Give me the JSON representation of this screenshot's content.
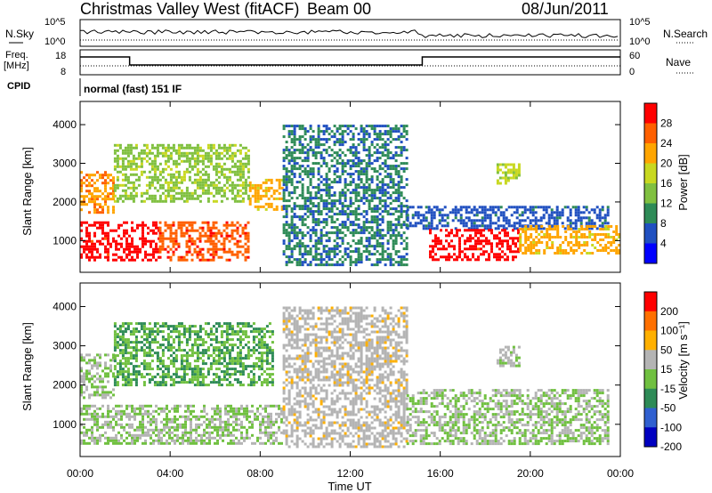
{
  "header": {
    "station": "Christmas Valley West (fitACF)",
    "beam": "Beam 00",
    "date": "08/Jun/2011"
  },
  "noise_panel": {
    "left_label": "N.Sky",
    "left_ticks": [
      "10^5",
      "10^0"
    ],
    "right_label": "N.Search",
    "right_ticks": [
      "10^5",
      "10^0"
    ]
  },
  "freq_panel": {
    "left_label_1": "Freq.",
    "left_label_2": "[MHz]",
    "left_ticks": [
      "18",
      "8"
    ],
    "right_label": "Nave",
    "right_ticks": [
      "60",
      "0"
    ]
  },
  "cpid": {
    "label": "CPID",
    "mode": "normal (fast) 151 IF"
  },
  "chart_data": [
    {
      "type": "heatmap",
      "title": "",
      "xlabel": "Time UT",
      "ylabel": "Slant Range [km]",
      "x_ticks": [
        "00:00",
        "04:00",
        "08:00",
        "12:00",
        "16:00",
        "20:00",
        "00:00"
      ],
      "xlim_hours": [
        0,
        24
      ],
      "y_ticks": [
        1000,
        2000,
        3000,
        4000
      ],
      "ylim": [
        180,
        4600
      ],
      "colorbar": {
        "label": "Power [dB]",
        "ticks": [
          "28",
          "24",
          "20",
          "16",
          "12",
          "8",
          "4"
        ],
        "range": [
          0,
          30
        ],
        "colors": [
          "#0000ff",
          "#2050c0",
          "#2e8b57",
          "#80c040",
          "#c8d820",
          "#ffa500",
          "#ff6000",
          "#ff0000"
        ]
      },
      "regions": [
        {
          "t0": 0.0,
          "t1": 3.5,
          "r0": 500,
          "r1": 1500,
          "value": 28
        },
        {
          "t0": 3.5,
          "t1": 7.5,
          "r0": 500,
          "r1": 1500,
          "value": 25
        },
        {
          "t0": 7.5,
          "t1": 9.0,
          "r0": 1800,
          "r1": 2600,
          "value": 20
        },
        {
          "t0": 0.0,
          "t1": 1.5,
          "r0": 1700,
          "r1": 2800,
          "value": 22
        },
        {
          "t0": 1.5,
          "t1": 7.5,
          "r0": 2000,
          "r1": 3500,
          "value": 14
        },
        {
          "t0": 9.0,
          "t1": 14.5,
          "r0": 400,
          "r1": 4000,
          "value": 8
        },
        {
          "t0": 14.5,
          "t1": 23.5,
          "r0": 1300,
          "r1": 1900,
          "value": 6
        },
        {
          "t0": 15.5,
          "t1": 19.5,
          "r0": 500,
          "r1": 1300,
          "value": 28
        },
        {
          "t0": 19.5,
          "t1": 24.0,
          "r0": 700,
          "r1": 1400,
          "value": 20
        },
        {
          "t0": 18.5,
          "t1": 19.5,
          "r0": 2500,
          "r1": 3000,
          "value": 16
        }
      ]
    },
    {
      "type": "heatmap",
      "title": "",
      "xlabel": "Time UT",
      "ylabel": "Slant Range [km]",
      "x_ticks": [
        "00:00",
        "04:00",
        "08:00",
        "12:00",
        "16:00",
        "20:00",
        "00:00"
      ],
      "xlim_hours": [
        0,
        24
      ],
      "y_ticks": [
        1000,
        2000,
        3000,
        4000
      ],
      "ylim": [
        180,
        4600
      ],
      "colorbar": {
        "label": "Velocity [m s⁻¹]",
        "ticks": [
          "200",
          "100",
          "50",
          "15",
          "-15",
          "-50",
          "-100",
          "-200"
        ],
        "range": [
          -250,
          250
        ],
        "colors": [
          "#0000c0",
          "#3060d0",
          "#2e8b57",
          "#70c040",
          "#b4b4b4",
          "#ffb000",
          "#ff7000",
          "#ff0000"
        ]
      },
      "regions": [
        {
          "t0": 0.0,
          "t1": 9.0,
          "r0": 500,
          "r1": 1500,
          "value": 0
        },
        {
          "t0": 0.0,
          "t1": 1.5,
          "r0": 1700,
          "r1": 2800,
          "value": 0
        },
        {
          "t0": 1.5,
          "t1": 8.5,
          "r0": 2000,
          "r1": 3600,
          "value": -60
        },
        {
          "t0": 9.0,
          "t1": 14.5,
          "r0": 400,
          "r1": 4000,
          "value": 40
        },
        {
          "t0": 14.5,
          "t1": 23.5,
          "r0": 500,
          "r1": 1900,
          "value": 0
        },
        {
          "t0": 18.5,
          "t1": 19.5,
          "r0": 2500,
          "r1": 3000,
          "value": 10
        }
      ]
    }
  ]
}
